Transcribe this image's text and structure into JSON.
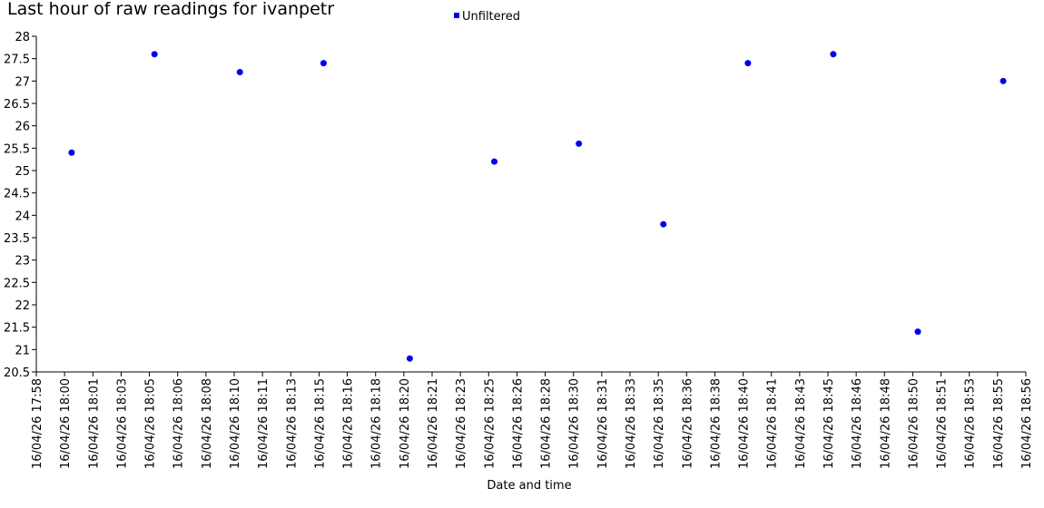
{
  "chart_data": {
    "type": "scatter",
    "title": "Last hour of raw readings for ivanpetr",
    "x_label": "Date and time",
    "legend": "top",
    "x": [
      "16/04/26 18:00:25",
      "16/04/26 18:05:18",
      "16/04/26 18:10:20",
      "16/04/26 18:15:16",
      "16/04/26 18:20:21",
      "16/04/26 18:25:20",
      "16/04/26 18:30:19",
      "16/04/26 18:35:18",
      "16/04/26 18:40:17",
      "16/04/26 18:45:19",
      "16/04/26 18:50:18",
      "16/04/26 18:55:20"
    ],
    "series": [
      {
        "name": "Unfiltered",
        "color": "#0000ee",
        "values": [
          25.4,
          27.6,
          27.2,
          27.4,
          20.8,
          25.2,
          25.6,
          23.8,
          27.4,
          27.6,
          21.4,
          27.0
        ]
      }
    ],
    "ylim": [
      20.5,
      28
    ],
    "yticks": [
      20.5,
      21,
      21.5,
      22,
      22.5,
      23,
      23.5,
      24,
      24.5,
      25,
      25.5,
      26,
      26.5,
      27,
      27.5,
      28
    ],
    "xlim": [
      "16/04/26 17:58:20",
      "16/04/26 18:56:40"
    ],
    "xticks": [
      {
        "value": "16/04/26 17:58:20",
        "label": "16/04/26 17:58"
      },
      {
        "value": "16/04/26 18:00:00",
        "label": "16/04/26 18:00"
      },
      {
        "value": "16/04/26 18:01:40",
        "label": "16/04/26 18:01"
      },
      {
        "value": "16/04/26 18:03:20",
        "label": "16/04/26 18:03"
      },
      {
        "value": "16/04/26 18:05:00",
        "label": "16/04/26 18:05"
      },
      {
        "value": "16/04/26 18:06:40",
        "label": "16/04/26 18:06"
      },
      {
        "value": "16/04/26 18:08:20",
        "label": "16/04/26 18:08"
      },
      {
        "value": "16/04/26 18:10:00",
        "label": "16/04/26 18:10"
      },
      {
        "value": "16/04/26 18:11:40",
        "label": "16/04/26 18:11"
      },
      {
        "value": "16/04/26 18:13:20",
        "label": "16/04/26 18:13"
      },
      {
        "value": "16/04/26 18:15:00",
        "label": "16/04/26 18:15"
      },
      {
        "value": "16/04/26 18:16:40",
        "label": "16/04/26 18:16"
      },
      {
        "value": "16/04/26 18:18:20",
        "label": "16/04/26 18:18"
      },
      {
        "value": "16/04/26 18:20:00",
        "label": "16/04/26 18:20"
      },
      {
        "value": "16/04/26 18:21:40",
        "label": "16/04/26 18:21"
      },
      {
        "value": "16/04/26 18:23:20",
        "label": "16/04/26 18:23"
      },
      {
        "value": "16/04/26 18:25:00",
        "label": "16/04/26 18:25"
      },
      {
        "value": "16/04/26 18:26:40",
        "label": "16/04/26 18:26"
      },
      {
        "value": "16/04/26 18:28:20",
        "label": "16/04/26 18:28"
      },
      {
        "value": "16/04/26 18:30:00",
        "label": "16/04/26 18:30"
      },
      {
        "value": "16/04/26 18:31:40",
        "label": "16/04/26 18:31"
      },
      {
        "value": "16/04/26 18:33:20",
        "label": "16/04/26 18:33"
      },
      {
        "value": "16/04/26 18:35:00",
        "label": "16/04/26 18:35"
      },
      {
        "value": "16/04/26 18:36:40",
        "label": "16/04/26 18:36"
      },
      {
        "value": "16/04/26 18:38:20",
        "label": "16/04/26 18:38"
      },
      {
        "value": "16/04/26 18:40:00",
        "label": "16/04/26 18:40"
      },
      {
        "value": "16/04/26 18:41:40",
        "label": "16/04/26 18:41"
      },
      {
        "value": "16/04/26 18:43:20",
        "label": "16/04/26 18:43"
      },
      {
        "value": "16/04/26 18:45:00",
        "label": "16/04/26 18:45"
      },
      {
        "value": "16/04/26 18:46:40",
        "label": "16/04/26 18:46"
      },
      {
        "value": "16/04/26 18:48:20",
        "label": "16/04/26 18:48"
      },
      {
        "value": "16/04/26 18:50:00",
        "label": "16/04/26 18:50"
      },
      {
        "value": "16/04/26 18:51:40",
        "label": "16/04/26 18:51"
      },
      {
        "value": "16/04/26 18:53:20",
        "label": "16/04/26 18:53"
      },
      {
        "value": "16/04/26 18:55:00",
        "label": "16/04/26 18:55"
      },
      {
        "value": "16/04/26 18:56:40",
        "label": "16/04/26 18:56"
      }
    ]
  }
}
